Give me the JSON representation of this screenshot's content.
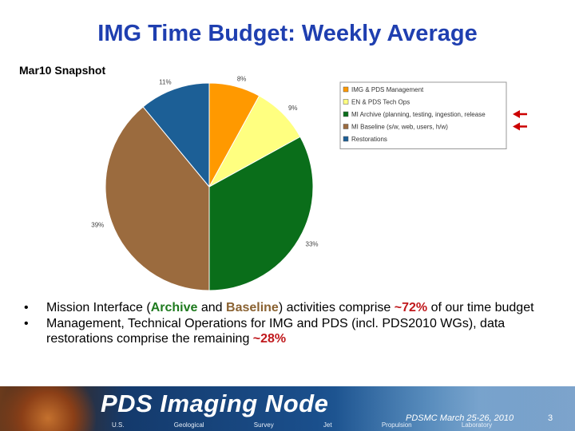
{
  "slide": {
    "title": "IMG Time Budget:  Weekly Average",
    "subtitle": "Mar10 Snapshot"
  },
  "chart_data": {
    "type": "pie",
    "title": "",
    "slices": [
      {
        "label": "IMG & PDS Management",
        "value": 8,
        "value_label": "8%",
        "color": "#ff9900"
      },
      {
        "label": "EN & PDS Tech Ops",
        "value": 9,
        "value_label": "9%",
        "color": "#ffff80"
      },
      {
        "label": "MI Archive (planning, testing, ingestion, release",
        "value": 33,
        "value_label": "33%",
        "color": "#0a6e1a"
      },
      {
        "label": "MI Baseline (s/w, web, users, h/w)",
        "value": 39,
        "value_label": "39%",
        "color": "#9b6b3e"
      },
      {
        "label": "Restorations",
        "value": 11,
        "value_label": "11%",
        "color": "#1c5f96"
      }
    ],
    "legend_position": "right",
    "highlighted_legend_entries": [
      2,
      3
    ],
    "arrow_color": "#cc0000"
  },
  "bullets": {
    "b1": {
      "marker": "•",
      "p1": "Mission Interface (",
      "archive": "Archive",
      "p2": " and ",
      "baseline": "Baseline",
      "p3": ") activities comprise ",
      "pct": "~72%",
      "p4": " of our time budget"
    },
    "b2": {
      "marker": "•",
      "p1": "Management, Technical Operations for IMG and PDS (incl. PDS2010 WGs), data restorations comprise the remaining ",
      "pct": "~28%"
    }
  },
  "footer": {
    "brand": "PDS Imaging Node",
    "sub_brand": "U.S. Geological Survey   Jet Propulsion Laboratory",
    "event": "PDSMC March 25-26, 2010",
    "page": "3"
  }
}
